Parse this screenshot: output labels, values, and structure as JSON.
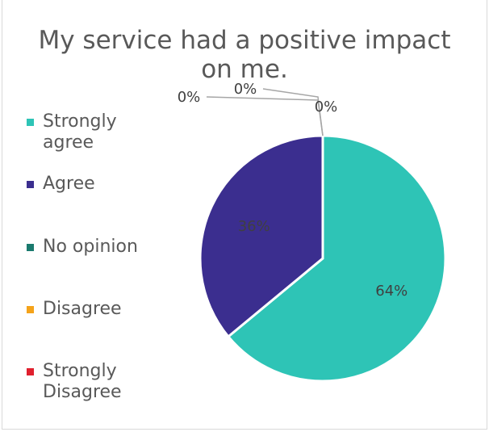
{
  "chart_data": {
    "type": "pie",
    "title": "My service had a positive impact on me.",
    "title_lines": [
      "My service had a positive impact",
      "on me."
    ],
    "categories": [
      "Strongly agree",
      "Agree",
      "No opinion",
      "Disagree",
      "Strongly Disagree"
    ],
    "legend_lines": [
      "Strongly\nagree",
      "Agree",
      "No opinion",
      "Disagree",
      "Strongly\nDisagree"
    ],
    "values": [
      64,
      36,
      0,
      0,
      0
    ],
    "data_labels": [
      "64%",
      "36%",
      "0%",
      "0%",
      "0%"
    ],
    "colors": [
      "#2ec4b6",
      "#3b2e8f",
      "#1a7a6e",
      "#f5a31a",
      "#e0202e"
    ],
    "legend_position": "left"
  }
}
